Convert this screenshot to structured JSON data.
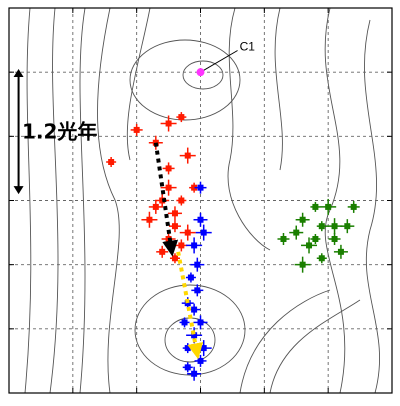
{
  "chart_data": {
    "type": "scatter",
    "title": "",
    "xlabel": "",
    "ylabel": "",
    "xlim": [
      0,
      6
    ],
    "ylim": [
      0,
      6
    ],
    "grid": true,
    "scale_bar": {
      "label": "1.2光年",
      "y_from": 3.1,
      "y_to": 5.05,
      "x": 0.15
    },
    "marker": {
      "label": "C1",
      "point": [
        3,
        5
      ],
      "label_pos": [
        3.8,
        5.4
      ],
      "color": "#ff33ff"
    },
    "series": [
      {
        "color": "#ff1a00",
        "points": [
          [
            1.6,
            3.6
          ],
          [
            2.0,
            4.1
          ],
          [
            2.3,
            3.9
          ],
          [
            2.5,
            4.2
          ],
          [
            2.7,
            4.3
          ],
          [
            2.5,
            3.5
          ],
          [
            2.4,
            3.0
          ],
          [
            2.5,
            3.2
          ],
          [
            2.7,
            3.0
          ],
          [
            2.6,
            2.6
          ],
          [
            2.3,
            2.9
          ],
          [
            2.2,
            2.7
          ],
          [
            2.6,
            2.1
          ],
          [
            2.7,
            2.3
          ],
          [
            2.5,
            2.4
          ],
          [
            2.8,
            3.7
          ],
          [
            2.9,
            3.2
          ],
          [
            2.4,
            2.2
          ],
          [
            2.6,
            2.8
          ],
          [
            2.8,
            2.5
          ]
        ]
      },
      {
        "color": "#0000ff",
        "points": [
          [
            3.0,
            3.2
          ],
          [
            3.0,
            2.7
          ],
          [
            2.9,
            2.3
          ],
          [
            2.85,
            1.8
          ],
          [
            2.8,
            1.4
          ],
          [
            3.0,
            1.1
          ],
          [
            2.9,
            0.9
          ],
          [
            2.8,
            0.7
          ],
          [
            3.0,
            0.5
          ],
          [
            2.9,
            0.3
          ],
          [
            3.05,
            0.7
          ],
          [
            2.75,
            1.1
          ],
          [
            2.95,
            1.6
          ],
          [
            2.95,
            2.0
          ],
          [
            3.05,
            2.5
          ],
          [
            2.8,
            0.4
          ],
          [
            2.9,
            1.3
          ]
        ]
      },
      {
        "color": "#1a7f00",
        "points": [
          [
            4.5,
            2.5
          ],
          [
            4.7,
            2.3
          ],
          [
            4.9,
            2.6
          ],
          [
            5.1,
            2.4
          ],
          [
            5.3,
            2.6
          ],
          [
            5.0,
            2.9
          ],
          [
            4.8,
            2.9
          ],
          [
            4.3,
            2.4
          ],
          [
            5.2,
            2.2
          ],
          [
            4.6,
            2.0
          ],
          [
            4.9,
            2.1
          ],
          [
            5.4,
            2.9
          ],
          [
            4.6,
            2.7
          ],
          [
            5.1,
            2.6
          ],
          [
            4.8,
            2.4
          ]
        ]
      }
    ],
    "arrows": [
      {
        "color": "#000000",
        "from": [
          2.3,
          3.9
        ],
        "to": [
          2.55,
          2.2
        ]
      },
      {
        "color": "#ffd700",
        "from": [
          2.65,
          2.2
        ],
        "to": [
          2.95,
          0.6
        ]
      }
    ]
  }
}
